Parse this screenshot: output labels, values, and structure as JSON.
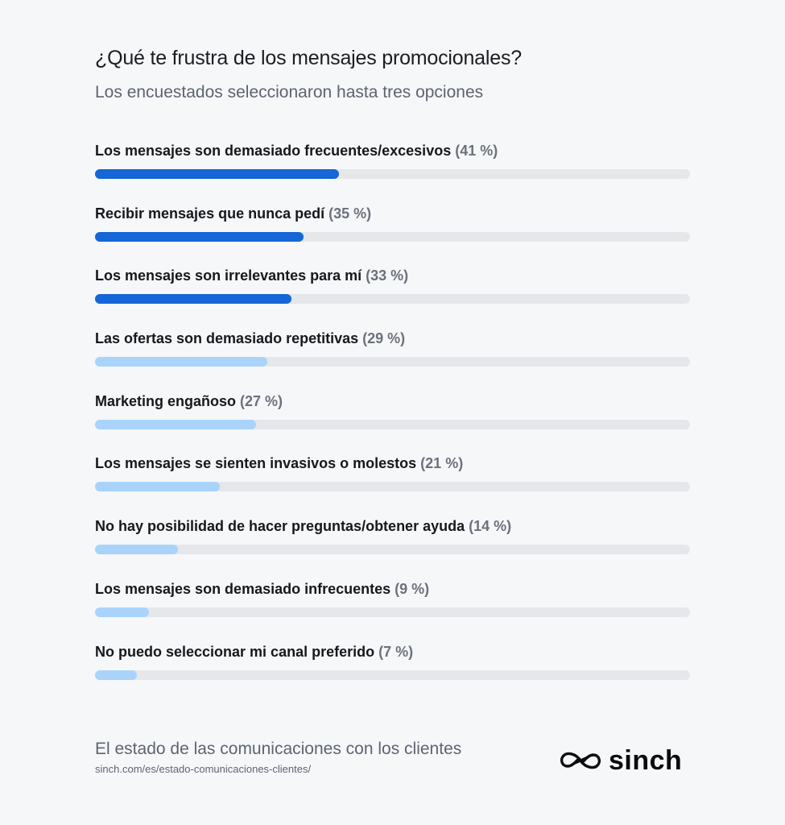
{
  "title": "¿Qué te frustra de los mensajes promocionales?",
  "subtitle": "Los encuestados seleccionaron hasta tres opciones",
  "footer": {
    "title": "El estado de las comunicaciones con los clientes",
    "url": "sinch.com/es/estado-comunicaciones-clientes/",
    "logo_text": "sinch",
    "logo_icon": "sinch-logo-icon"
  },
  "colors": {
    "highlight": "#1566d6",
    "normal": "#a9d3fb",
    "track": "#e5e7ea"
  },
  "chart_data": {
    "type": "bar",
    "orientation": "horizontal",
    "title": "¿Qué te frustra de los mensajes promocionales?",
    "subtitle": "Los encuestados seleccionaron hasta tres opciones",
    "xlim": [
      0,
      100
    ],
    "unit": "%",
    "grid": false,
    "bars": [
      {
        "label": "Los mensajes son demasiado frecuentes/excesivos",
        "value": 41,
        "value_text": "(41 %)",
        "highlight": true
      },
      {
        "label": "Recibir mensajes que nunca pedí",
        "value": 35,
        "value_text": "(35 %)",
        "highlight": true
      },
      {
        "label": "Los mensajes son irrelevantes para mí",
        "value": 33,
        "value_text": "(33 %)",
        "highlight": true
      },
      {
        "label": "Las ofertas son demasiado repetitivas",
        "value": 29,
        "value_text": "(29 %)",
        "highlight": false
      },
      {
        "label": "Marketing engañoso",
        "value": 27,
        "value_text": "(27 %)",
        "highlight": false
      },
      {
        "label": "Los mensajes se sienten invasivos o molestos",
        "value": 21,
        "value_text": "(21 %)",
        "highlight": false
      },
      {
        "label": "No hay posibilidad de hacer preguntas/obtener ayuda",
        "value": 14,
        "value_text": "(14 %)",
        "highlight": false
      },
      {
        "label": "Los mensajes son demasiado infrecuentes",
        "value": 9,
        "value_text": "(9 %)",
        "highlight": false
      },
      {
        "label": "No puedo seleccionar mi canal preferido",
        "value": 7,
        "value_text": "(7 %)",
        "highlight": false
      }
    ]
  }
}
